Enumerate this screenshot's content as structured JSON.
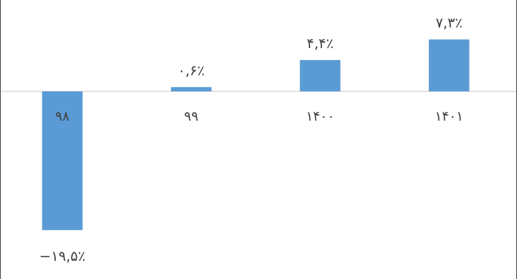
{
  "chart_data": {
    "type": "bar",
    "categories": [
      "۹۸",
      "۹۹",
      "۱۴۰۰",
      "۱۴۰۱"
    ],
    "values": [
      -19.5,
      0.6,
      4.4,
      7.3
    ],
    "data_labels": [
      "−۱۹,۵٪",
      "۰,۶٪",
      "۴,۴٪",
      "۷,۳٪"
    ],
    "title": "",
    "xlabel": "",
    "ylabel": "",
    "ylim": [
      -20,
      8
    ],
    "grid": false,
    "legend": "none",
    "bar_color": "#5b9bd5",
    "axis_color": "#d9d9d9",
    "text_color": "#404040"
  }
}
